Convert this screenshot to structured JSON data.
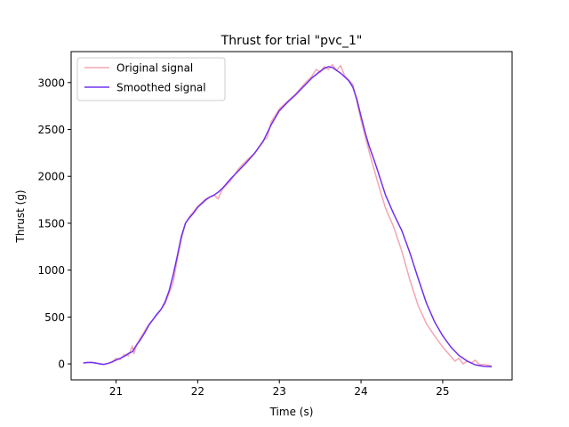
{
  "chart_data": {
    "type": "line",
    "title": "Thrust for trial \"pvc_1\"",
    "xlabel": "Time (s)",
    "ylabel": "Thrust (g)",
    "xlim": [
      20.45,
      25.85
    ],
    "ylim": [
      -170,
      3330
    ],
    "xticks": [
      21,
      22,
      23,
      24,
      25
    ],
    "yticks": [
      0,
      500,
      1000,
      1500,
      2000,
      2500,
      3000
    ],
    "grid": false,
    "legend_position": "upper-left",
    "colors": {
      "original": "#f4a6b3",
      "smoothed": "#7030f0"
    },
    "series": [
      {
        "name": "Original signal",
        "x": [
          20.6,
          20.7,
          20.75,
          20.8,
          20.85,
          20.9,
          20.95,
          21.0,
          21.05,
          21.1,
          21.15,
          21.2,
          21.22,
          21.25,
          21.3,
          21.4,
          21.5,
          21.6,
          21.7,
          21.75,
          21.8,
          21.85,
          21.9,
          22.0,
          22.1,
          22.2,
          22.25,
          22.3,
          22.4,
          22.5,
          22.6,
          22.7,
          22.8,
          22.85,
          22.9,
          23.0,
          23.1,
          23.2,
          23.3,
          23.4,
          23.45,
          23.5,
          23.55,
          23.6,
          23.65,
          23.7,
          23.75,
          23.8,
          23.9,
          24.0,
          24.1,
          24.2,
          24.3,
          24.4,
          24.5,
          24.6,
          24.7,
          24.8,
          24.9,
          25.0,
          25.1,
          25.15,
          25.2,
          25.25,
          25.3,
          25.35,
          25.4,
          25.45,
          25.5,
          25.6
        ],
        "y": [
          10,
          20,
          5,
          5,
          -5,
          5,
          20,
          60,
          45,
          100,
          85,
          190,
          110,
          200,
          280,
          420,
          520,
          640,
          870,
          1120,
          1330,
          1500,
          1570,
          1680,
          1760,
          1800,
          1760,
          1860,
          1950,
          2080,
          2170,
          2250,
          2380,
          2410,
          2580,
          2720,
          2800,
          2880,
          2980,
          3070,
          3140,
          3110,
          3170,
          3140,
          3190,
          3130,
          3180,
          3070,
          2980,
          2600,
          2260,
          1950,
          1660,
          1460,
          1200,
          890,
          620,
          430,
          300,
          180,
          80,
          30,
          60,
          0,
          30,
          10,
          40,
          -10,
          -5,
          -20
        ]
      },
      {
        "name": "Smoothed signal",
        "x": [
          20.6,
          20.65,
          20.7,
          20.75,
          20.8,
          20.85,
          20.9,
          20.95,
          21.0,
          21.05,
          21.1,
          21.15,
          21.2,
          21.25,
          21.3,
          21.35,
          21.4,
          21.45,
          21.5,
          21.55,
          21.6,
          21.65,
          21.7,
          21.75,
          21.8,
          21.85,
          21.9,
          21.95,
          22.0,
          22.05,
          22.1,
          22.15,
          22.2,
          22.25,
          22.3,
          22.4,
          22.5,
          22.6,
          22.7,
          22.8,
          22.9,
          23.0,
          23.1,
          23.2,
          23.3,
          23.4,
          23.5,
          23.55,
          23.6,
          23.65,
          23.7,
          23.75,
          23.8,
          23.85,
          23.9,
          23.95,
          24.0,
          24.05,
          24.1,
          24.15,
          24.2,
          24.3,
          24.4,
          24.5,
          24.6,
          24.7,
          24.8,
          24.9,
          25.0,
          25.1,
          25.2,
          25.3,
          25.4,
          25.5,
          25.6
        ],
        "y": [
          10,
          15,
          15,
          10,
          0,
          -5,
          5,
          20,
          40,
          60,
          80,
          110,
          130,
          200,
          260,
          330,
          410,
          470,
          530,
          580,
          660,
          780,
          950,
          1150,
          1360,
          1500,
          1560,
          1610,
          1670,
          1710,
          1750,
          1780,
          1800,
          1830,
          1870,
          1970,
          2060,
          2150,
          2250,
          2370,
          2550,
          2700,
          2790,
          2870,
          2960,
          3050,
          3120,
          3150,
          3170,
          3160,
          3130,
          3100,
          3060,
          3020,
          2950,
          2820,
          2640,
          2470,
          2320,
          2200,
          2070,
          1800,
          1600,
          1420,
          1180,
          910,
          650,
          450,
          300,
          180,
          90,
          30,
          -10,
          -25,
          -30
        ]
      }
    ]
  }
}
